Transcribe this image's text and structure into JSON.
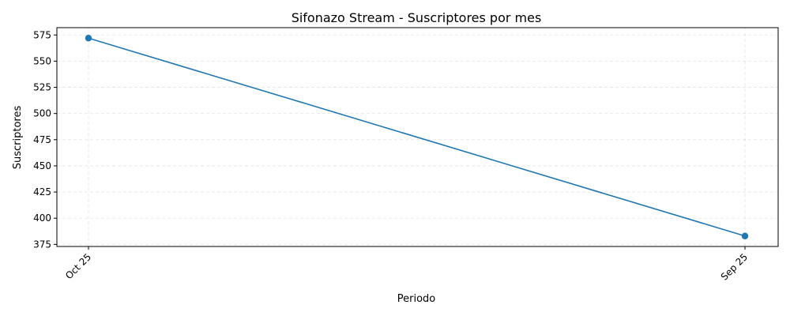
{
  "chart_data": {
    "type": "line",
    "title": "Sifonazo Stream - Suscriptores por mes",
    "xlabel": "Periodo",
    "ylabel": "Suscriptores",
    "categories": [
      "Oct 25",
      "Sep 25"
    ],
    "series": [
      {
        "values": [
          572,
          383
        ],
        "color": "#1f77b4",
        "marker": "circle"
      }
    ],
    "yticks": [
      375,
      400,
      425,
      450,
      475,
      500,
      525,
      550,
      575
    ],
    "ylim": [
      373,
      582
    ],
    "grid": true
  }
}
